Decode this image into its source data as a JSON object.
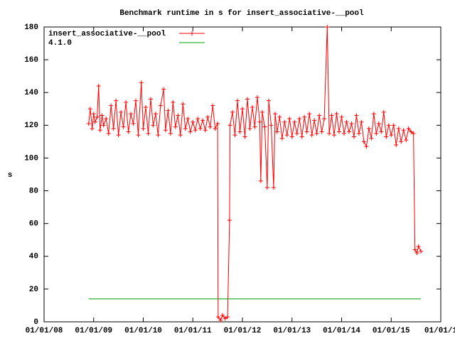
{
  "chart_data": {
    "type": "line",
    "title": "Benchmark runtime in s for insert_associative-__pool",
    "ylabel": "s",
    "xlim": [
      2008,
      2016
    ],
    "xticks": [
      {
        "value": 2008,
        "label": "01/01/08"
      },
      {
        "value": 2009,
        "label": "01/01/09"
      },
      {
        "value": 2010,
        "label": "01/01/10"
      },
      {
        "value": 2011,
        "label": "01/01/11"
      },
      {
        "value": 2012,
        "label": "01/01/12"
      },
      {
        "value": 2013,
        "label": "01/01/13"
      },
      {
        "value": 2014,
        "label": "01/01/14"
      },
      {
        "value": 2015,
        "label": "01/01/15"
      },
      {
        "value": 2016,
        "label": "01/01/1"
      }
    ],
    "ylim": [
      0,
      180
    ],
    "yticks": [
      0,
      20,
      40,
      60,
      80,
      100,
      120,
      140,
      160,
      180
    ],
    "legend": "top-left",
    "series": [
      {
        "name": "insert_associative-__pool",
        "color": "#ff0000",
        "markers": true,
        "x": [
          2008.9,
          2008.93,
          2008.97,
          2009.0,
          2009.03,
          2009.07,
          2009.1,
          2009.13,
          2009.17,
          2009.2,
          2009.25,
          2009.3,
          2009.35,
          2009.4,
          2009.45,
          2009.5,
          2009.55,
          2009.6,
          2009.65,
          2009.7,
          2009.75,
          2009.8,
          2009.85,
          2009.9,
          2009.96,
          2010.0,
          2010.05,
          2010.1,
          2010.15,
          2010.2,
          2010.25,
          2010.3,
          2010.35,
          2010.41,
          2010.45,
          2010.5,
          2010.55,
          2010.6,
          2010.65,
          2010.7,
          2010.75,
          2010.8,
          2010.85,
          2010.9,
          2010.95,
          2011.0,
          2011.05,
          2011.1,
          2011.15,
          2011.2,
          2011.25,
          2011.3,
          2011.35,
          2011.4,
          2011.45,
          2011.5,
          2011.51,
          2011.56,
          2011.6,
          2011.65,
          2011.7,
          2011.74,
          2011.75,
          2011.8,
          2011.85,
          2011.9,
          2011.95,
          2012.0,
          2012.05,
          2012.1,
          2012.15,
          2012.2,
          2012.25,
          2012.3,
          2012.35,
          2012.37,
          2012.4,
          2012.45,
          2012.5,
          2012.53,
          2012.58,
          2012.63,
          2012.66,
          2012.7,
          2012.75,
          2012.8,
          2012.85,
          2012.9,
          2012.95,
          2013.0,
          2013.05,
          2013.1,
          2013.15,
          2013.2,
          2013.25,
          2013.3,
          2013.35,
          2013.4,
          2013.45,
          2013.5,
          2013.55,
          2013.6,
          2013.65,
          2013.71,
          2013.75,
          2013.8,
          2013.85,
          2013.9,
          2013.95,
          2014.0,
          2014.05,
          2014.1,
          2014.15,
          2014.2,
          2014.25,
          2014.3,
          2014.35,
          2014.4,
          2014.45,
          2014.5,
          2014.55,
          2014.6,
          2014.65,
          2014.7,
          2014.75,
          2014.8,
          2014.85,
          2014.9,
          2014.95,
          2015.0,
          2015.05,
          2015.1,
          2015.15,
          2015.2,
          2015.25,
          2015.3,
          2015.35,
          2015.4,
          2015.45,
          2015.48,
          2015.52,
          2015.55,
          2015.6
        ],
        "values": [
          121,
          130,
          118,
          127,
          122,
          125,
          144,
          117,
          126,
          120,
          124,
          115,
          132,
          118,
          135,
          114,
          128,
          119,
          134,
          116,
          127,
          121,
          135,
          114,
          146,
          118,
          131,
          115,
          136,
          120,
          127,
          114,
          132,
          142,
          117,
          129,
          115,
          134,
          119,
          126,
          114,
          133,
          118,
          124,
          116,
          122,
          117,
          124,
          118,
          123,
          117,
          125,
          119,
          132,
          118,
          121,
          3,
          1,
          4,
          2,
          3,
          62,
          120,
          128,
          114,
          135,
          116,
          130,
          113,
          136,
          118,
          131,
          119,
          137,
          122,
          86,
          128,
          119,
          82,
          135,
          120,
          82,
          127,
          116,
          125,
          112,
          122,
          114,
          124,
          113,
          122,
          115,
          124,
          113,
          125,
          116,
          127,
          114,
          123,
          115,
          126,
          116,
          124,
          180,
          115,
          126,
          114,
          127,
          116,
          125,
          115,
          122,
          116,
          121,
          113,
          126,
          115,
          122,
          110,
          107,
          118,
          112,
          127,
          115,
          121,
          116,
          128,
          113,
          120,
          114,
          120,
          108,
          118,
          110,
          117,
          111,
          118,
          116,
          115,
          44,
          42,
          46,
          43
        ]
      },
      {
        "name": "4.1.0",
        "color": "#00a000",
        "markers": false,
        "x": [
          2008.9,
          2015.6
        ],
        "values": [
          14,
          14
        ]
      }
    ]
  }
}
